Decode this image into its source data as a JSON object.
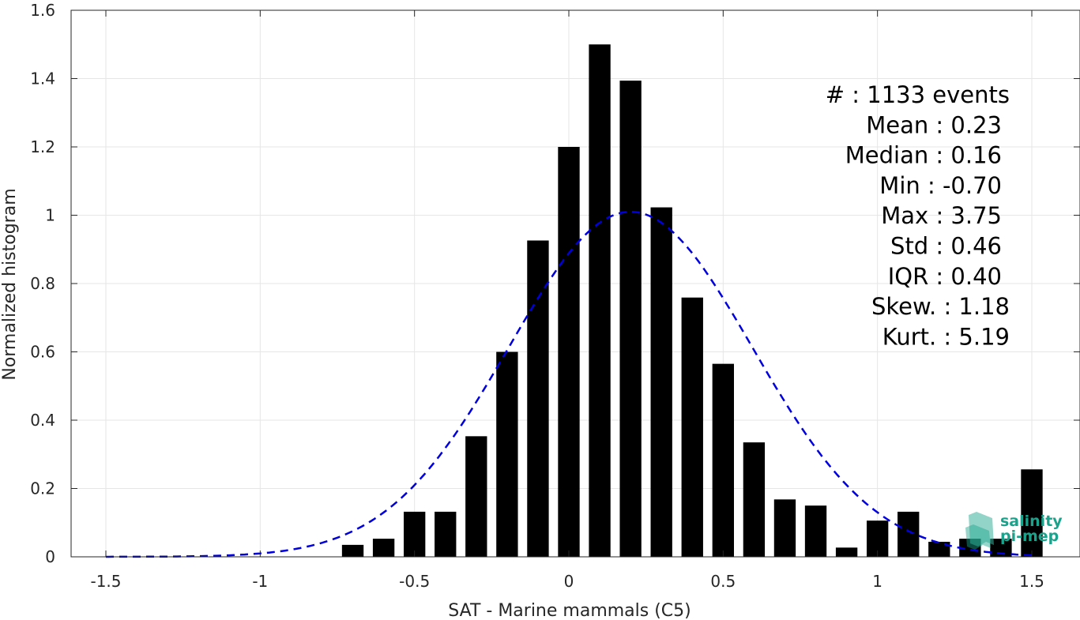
{
  "chart_data": {
    "type": "bar",
    "title": "",
    "xlabel": "SAT - Marine mammals (C5)",
    "ylabel": "Normalized histogram",
    "xlim": [
      -1.5,
      1.5
    ],
    "ylim": [
      0,
      1.6
    ],
    "xticks": [
      "-1.5",
      "-1",
      "-0.5",
      "0",
      "0.5",
      "1",
      "1.5"
    ],
    "yticks": [
      "0",
      "0.2",
      "0.4",
      "0.6",
      "0.8",
      "1",
      "1.2",
      "1.4",
      "1.6"
    ],
    "grid": true,
    "bin_width": 0.1,
    "x": [
      -0.7,
      -0.6,
      -0.5,
      -0.4,
      -0.3,
      -0.2,
      -0.1,
      0.0,
      0.1,
      0.2,
      0.3,
      0.4,
      0.5,
      0.6,
      0.7,
      0.8,
      0.9,
      1.0,
      1.1,
      1.2,
      1.3,
      1.4,
      1.5
    ],
    "values": [
      0.035,
      0.053,
      0.132,
      0.132,
      0.353,
      0.6,
      0.926,
      1.2,
      1.5,
      1.394,
      1.023,
      0.759,
      0.565,
      0.335,
      0.168,
      0.15,
      0.027,
      0.106,
      0.132,
      0.044,
      0.053,
      0.053,
      0.256
    ],
    "fit": {
      "style": "dashed",
      "color": "#0000dd",
      "mean": 0.2,
      "std": 0.395,
      "peak": 1.01
    },
    "bar_color": "#000000"
  },
  "stats": [
    {
      "label": "#  : 1133 events"
    },
    {
      "label": "Mean : 0.23"
    },
    {
      "label": "Median : 0.16"
    },
    {
      "label": "Min : -0.70"
    },
    {
      "label": "Max : 3.75"
    },
    {
      "label": "Std : 0.46"
    },
    {
      "label": "IQR : 0.40"
    },
    {
      "label": "Skew. : 1.18"
    },
    {
      "label": "Kurt. : 5.19"
    }
  ],
  "logo": {
    "line1": "salinity",
    "line2": "pi-mep",
    "color": "#1aa38c"
  }
}
